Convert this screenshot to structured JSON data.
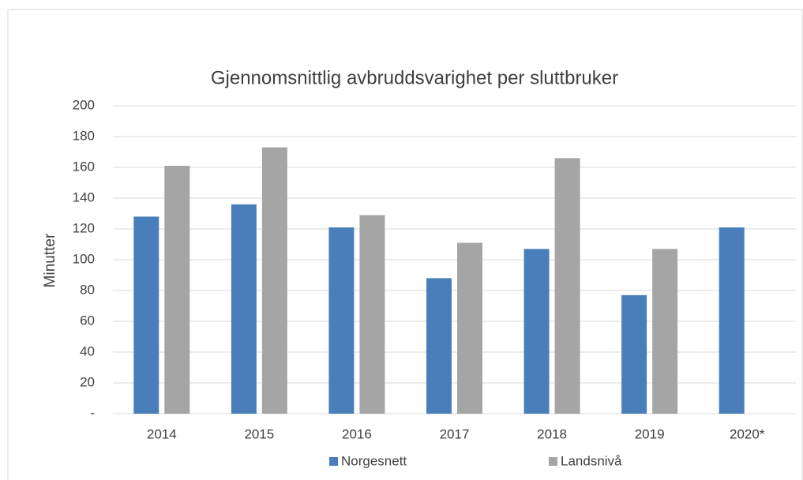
{
  "chart_data": {
    "type": "bar",
    "title": "Gjennomsnittlig avbruddsvarighet per sluttbruker",
    "y_label": "Minutter",
    "categories": [
      "2014",
      "2015",
      "2016",
      "2017",
      "2018",
      "2019",
      "2020*"
    ],
    "series": [
      {
        "name": "Norgesnett",
        "color": "#4a7ebb",
        "values": [
          128,
          136,
          121,
          88,
          107,
          77,
          121
        ]
      },
      {
        "name": "Landsnivå",
        "color": "#a5a5a5",
        "values": [
          161,
          173,
          129,
          111,
          166,
          107,
          null
        ]
      }
    ],
    "ylim": [
      0,
      200
    ],
    "yticks": [
      {
        "value": 0,
        "label": "-"
      },
      20,
      40,
      60,
      80,
      100,
      120,
      140,
      160,
      180,
      200
    ],
    "grid": true,
    "legend": "bottom"
  }
}
